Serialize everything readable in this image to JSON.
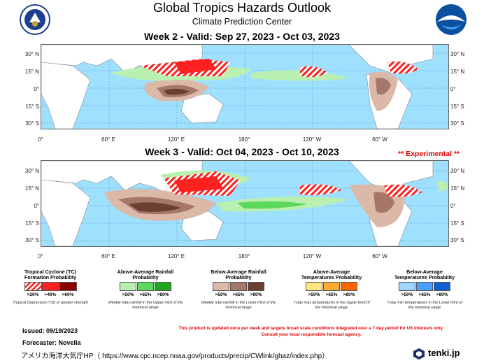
{
  "header": {
    "title": "Global Tropics Hazards Outlook",
    "subtitle": "Climate Prediction Center"
  },
  "week2": {
    "title": "Week 2 - Valid: Sep 27, 2023 - Oct 03, 2023"
  },
  "week3": {
    "title": "Week 3 - Valid: Oct 04, 2023 - Oct 10, 2023",
    "badge": "** Experimental **"
  },
  "axes": {
    "lat_left": [
      "30° N",
      "15° N",
      "0°",
      "15° S",
      "30° S"
    ],
    "lat_right": [
      "30° N",
      "15° N",
      "0°",
      "15° S",
      "30° S"
    ],
    "lon": [
      "0°",
      "60° E",
      "120° E",
      "180°",
      "120° W",
      "60° W"
    ]
  },
  "legend": [
    {
      "title": "Tropical Cyclone (TC) Formation Probability",
      "labels": [
        ">20%",
        ">40%",
        ">60%"
      ],
      "colors": [
        "#ffffff",
        "#ff2020",
        "#8b0000"
      ],
      "note": "Tropical Depression (TD) or greater strength"
    },
    {
      "title": "Above-Average Rainfall Probability",
      "labels": [
        ">50%",
        ">65%",
        ">80%"
      ],
      "colors": [
        "#b9f0b0",
        "#5cd85c",
        "#1fa51f"
      ],
      "note": "Weekly total rainfall in the Upper third of the historical range"
    },
    {
      "title": "Below-Average Rainfall Probability",
      "labels": [
        ">50%",
        ">65%",
        ">80%"
      ],
      "colors": [
        "#dbb8a8",
        "#a5776a",
        "#6a4030"
      ],
      "note": "Weekly total rainfall in the Lower third of the historical range"
    },
    {
      "title": "Above-Average Temperatures Probability",
      "labels": [
        ">50%",
        ">65%",
        ">80%"
      ],
      "colors": [
        "#ffe680",
        "#ffaa33",
        "#ff6600"
      ],
      "note": "7-day max temperatures in the Upper third of the historical range"
    },
    {
      "title": "Below-Average Temperatures Probability",
      "labels": [
        ">50%",
        ">65%",
        ">80%"
      ],
      "colors": [
        "#9fd4ff",
        "#4aa0ff",
        "#1060d0"
      ],
      "note": "7-day min temperatures in the Lower third of the historical range"
    }
  ],
  "footer": {
    "issued": "Issued: 09/19/2023",
    "forecaster": "Forecaster: Novella",
    "disclaimer1": "This product is updated once per week and targets broad scale conditions integrated over a 7-day period for US interests only.",
    "disclaimer2": "Consult your local responsible forecast agency.",
    "source": "アメリカ海洋大気庁HP（ https://www.cpc.ncep.noaa.gov/products/precip/CWlink/ghaz/index.php）",
    "brand": "tenki.jp"
  },
  "colors": {
    "ocean": "#9fe0ff",
    "land": "#ffffff",
    "experimental": "#e00000"
  }
}
